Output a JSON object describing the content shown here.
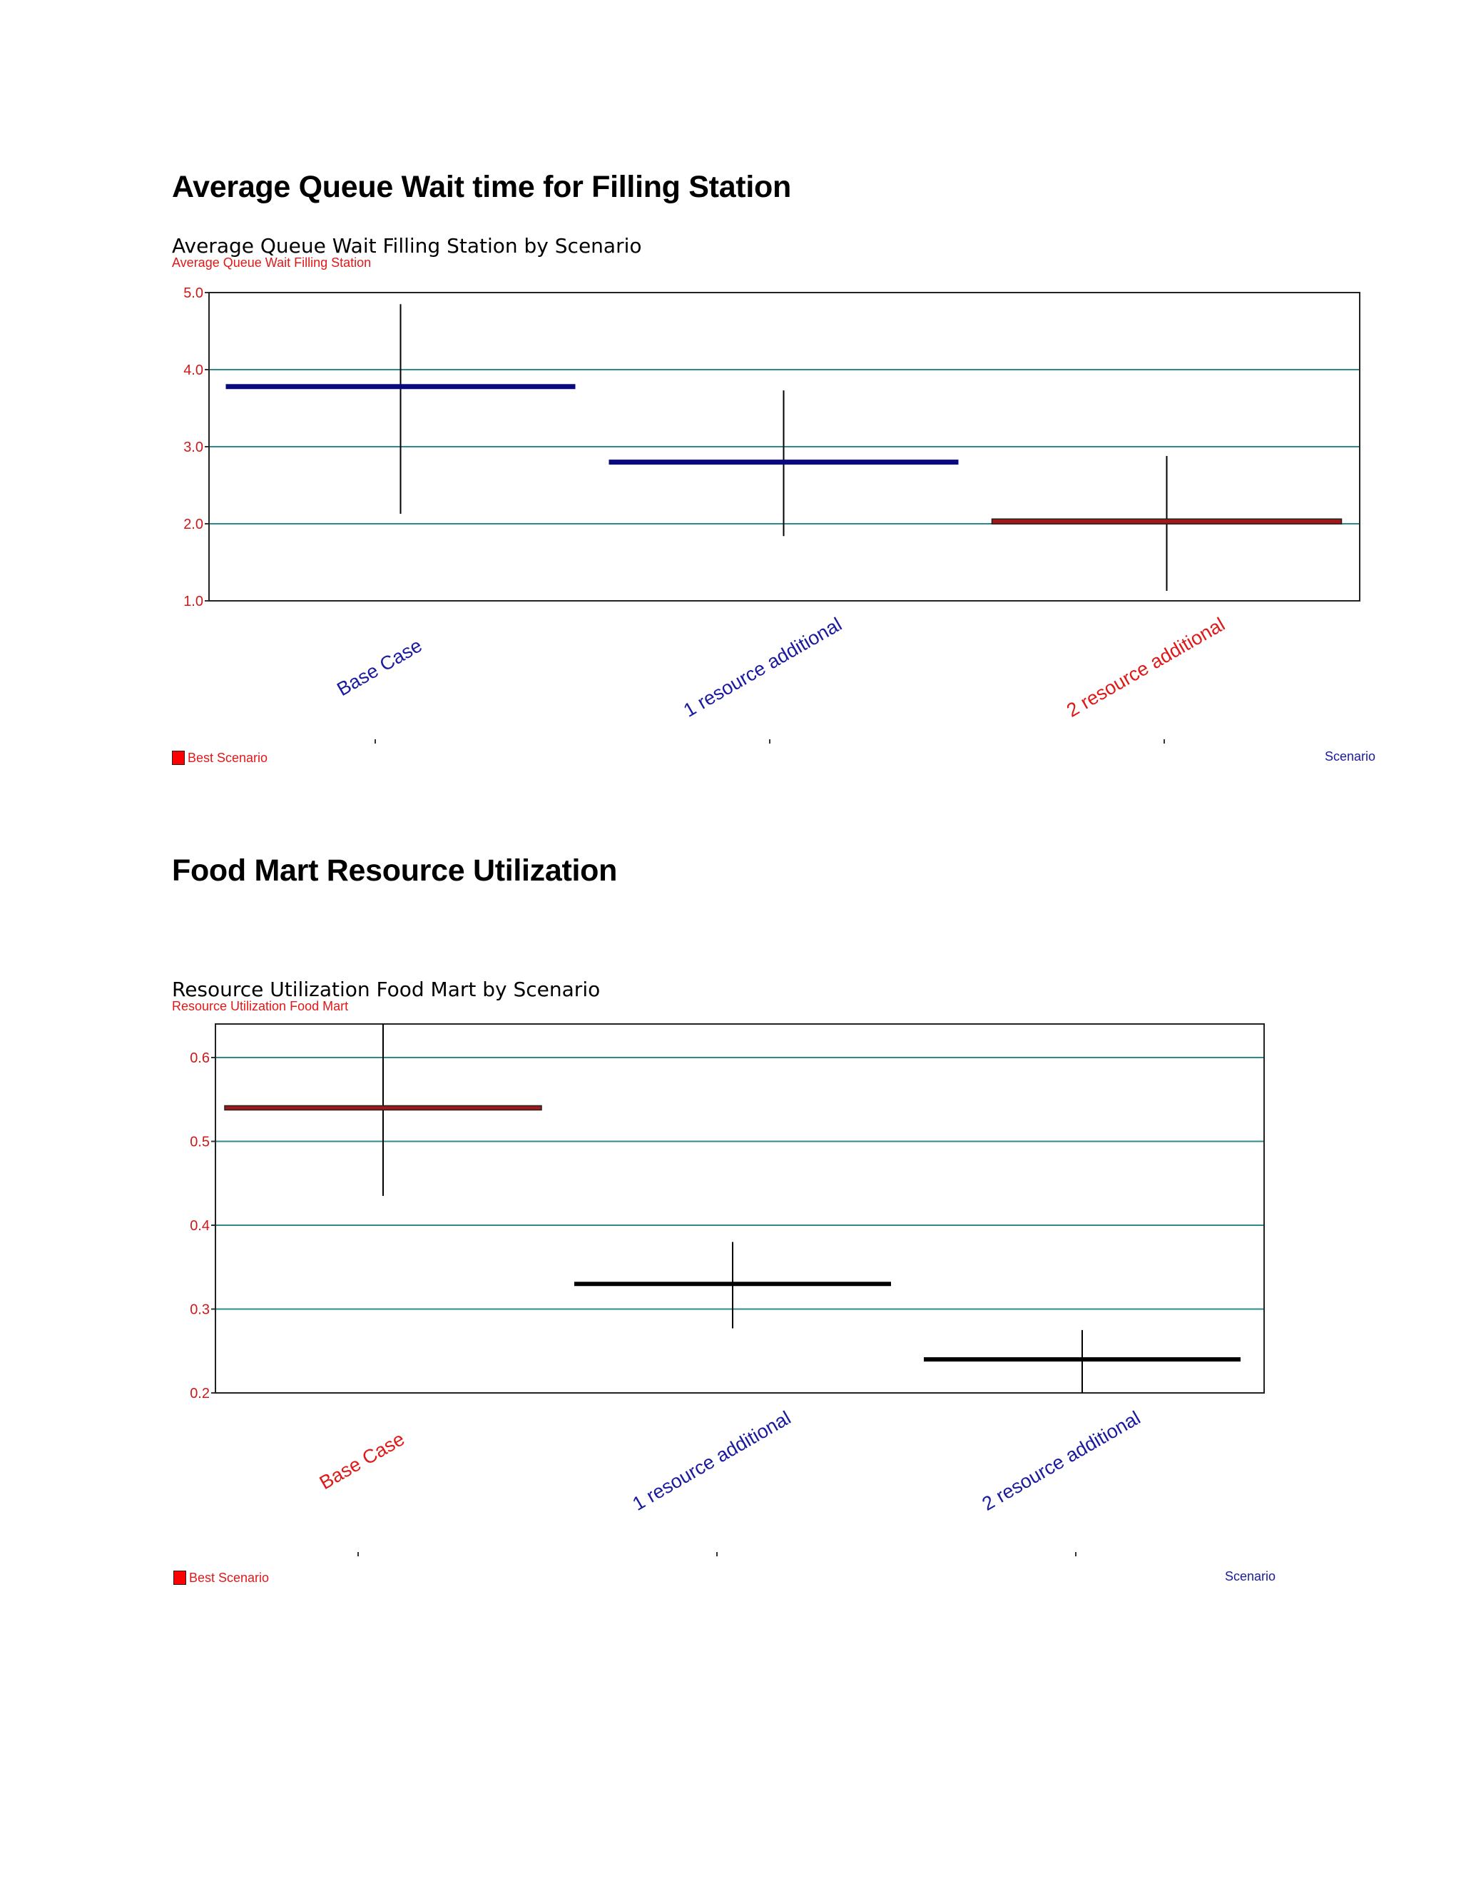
{
  "page": {
    "heading1": "Average Queue Wait time for Filling Station",
    "heading2": "Food Mart Resource Utilization"
  },
  "chart_data": [
    {
      "type": "box",
      "title": "Average Queue Wait Filling Station by Scenario",
      "subtitle": "Average Queue Wait Filling Station",
      "xlabel": "Scenario",
      "ylim": [
        1.0,
        5.0
      ],
      "yticks": [
        "1.0",
        "2.0",
        "3.0",
        "4.0",
        "5.0"
      ],
      "grid": true,
      "legend": {
        "label": "Best Scenario",
        "color": "#ff0000",
        "position": "bottom-left"
      },
      "categories": [
        "Base Case",
        "1 resource additional",
        "2 resource additional"
      ],
      "best_index": 2,
      "values": [
        3.78,
        2.8,
        2.03
      ],
      "low": [
        2.13,
        1.84,
        1.13
      ],
      "high": [
        4.85,
        3.73,
        2.88
      ],
      "colors": {
        "bar": "#0a0a80",
        "best": "#a01818",
        "label": "#1a1aa0",
        "best_label": "#e01818",
        "grid": "#2e8b8b"
      }
    },
    {
      "type": "box",
      "title": "Resource Utilization Food Mart by Scenario",
      "subtitle": "Resource Utilization Food Mart",
      "xlabel": "Scenario",
      "ylim": [
        0.2,
        0.64
      ],
      "yticks": [
        "0.2",
        "0.3",
        "0.4",
        "0.5",
        "0.6"
      ],
      "grid": true,
      "legend": {
        "label": "Best Scenario",
        "color": "#ff0000",
        "position": "bottom-left"
      },
      "categories": [
        "Base Case",
        "1 resource additional",
        "2 resource additional"
      ],
      "best_index": 0,
      "values": [
        0.54,
        0.33,
        0.24
      ],
      "low": [
        0.435,
        0.277,
        0.2
      ],
      "high": [
        0.64,
        0.38,
        0.275
      ],
      "colors": {
        "bar": "#000000",
        "best": "#a01818",
        "label": "#1a1aa0",
        "best_label": "#e01818",
        "grid": "#2e8b8b"
      }
    }
  ]
}
